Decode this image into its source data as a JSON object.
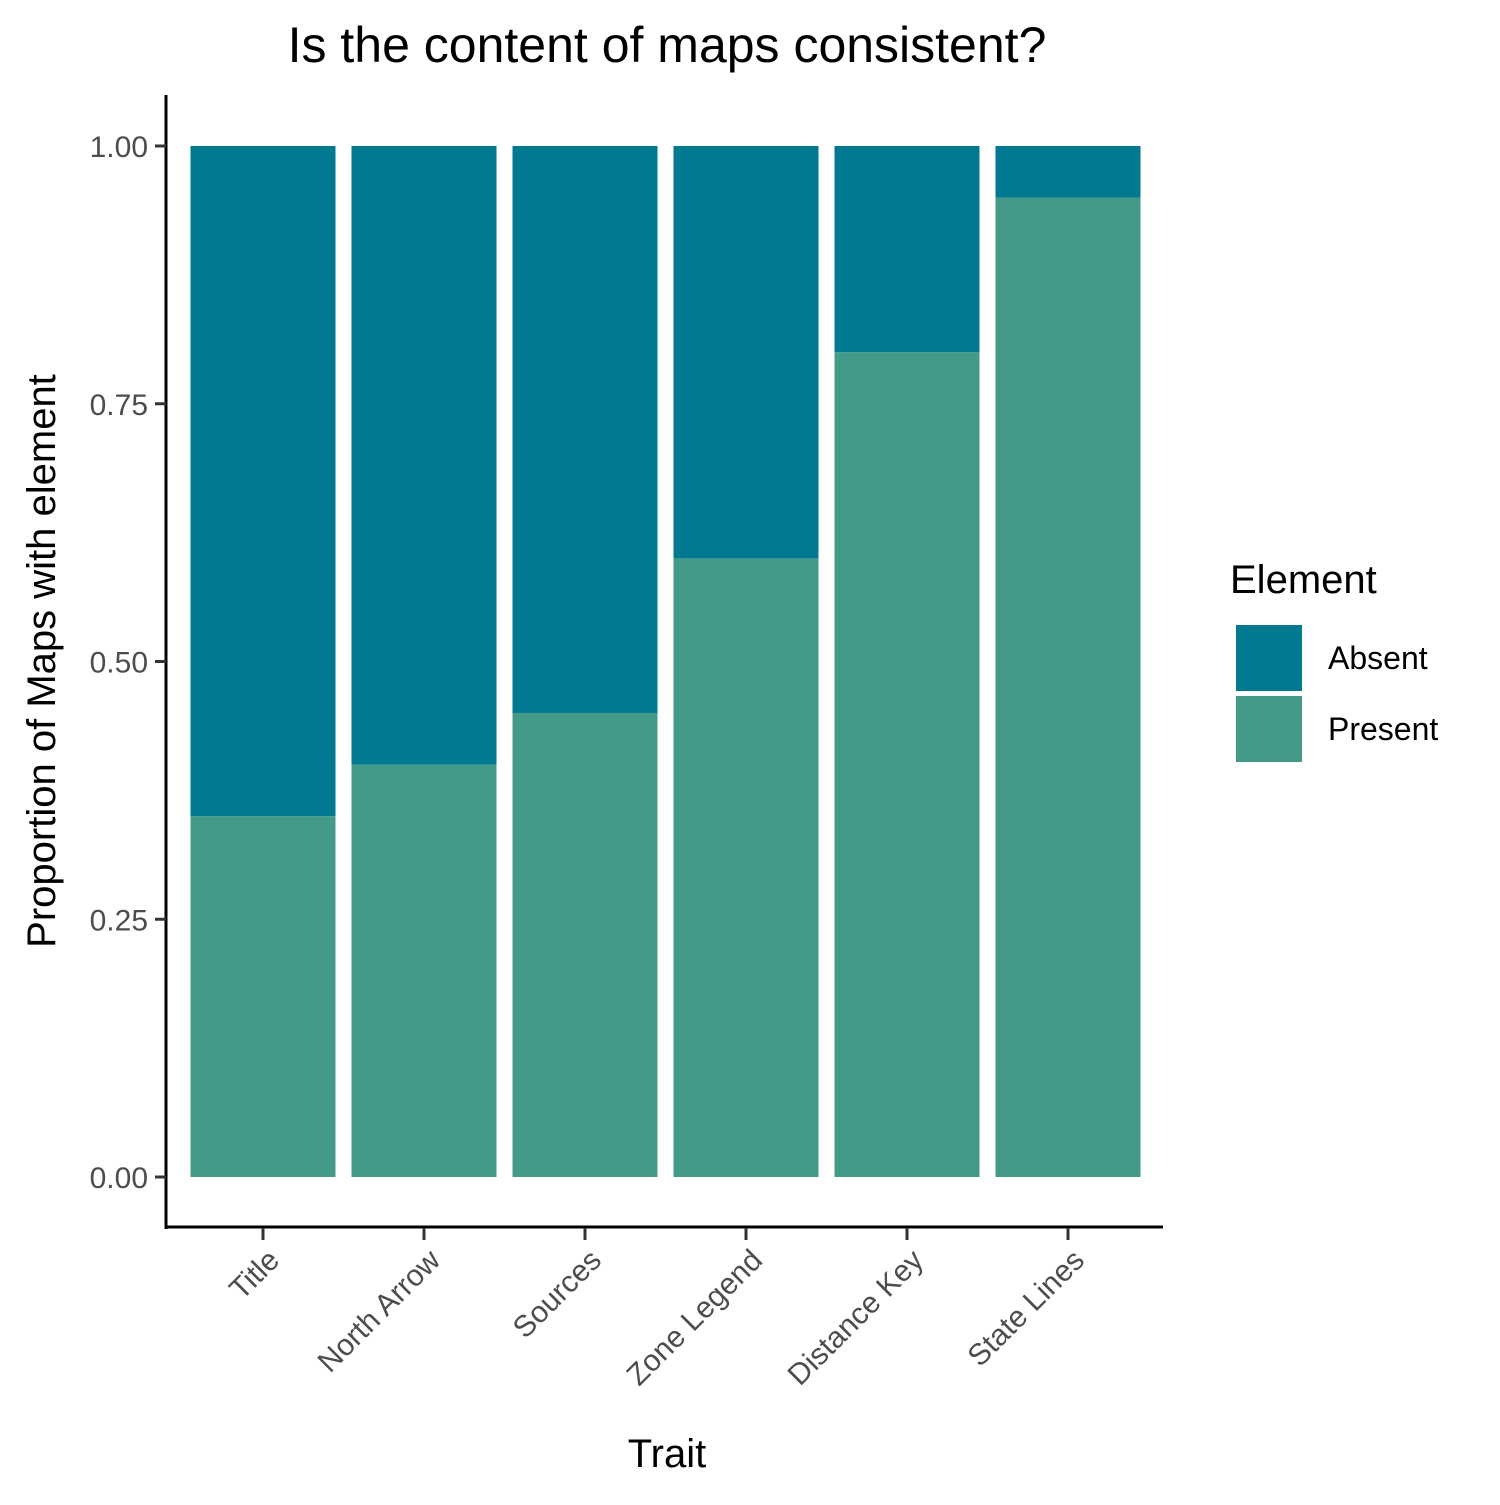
{
  "chart_data": {
    "type": "bar",
    "stacked": true,
    "title": "Is the content of maps consistent?",
    "xlabel": "Trait",
    "ylabel": "Proportion of Maps with element",
    "categories": [
      "Title",
      "North Arrow",
      "Sources",
      "Zone Legend",
      "Distance Key",
      "State Lines"
    ],
    "series": [
      {
        "name": "Present",
        "color": "#449a88",
        "values": [
          0.35,
          0.4,
          0.45,
          0.6,
          0.8,
          0.95
        ]
      },
      {
        "name": "Absent",
        "color": "#017a91",
        "values": [
          0.65,
          0.6,
          0.55,
          0.4,
          0.2,
          0.05
        ]
      }
    ],
    "ylim": [
      0,
      1
    ],
    "yticks": [
      "0.00",
      "0.25",
      "0.50",
      "0.75",
      "1.00"
    ],
    "ytick_values": [
      0,
      0.25,
      0.5,
      0.75,
      1.0
    ],
    "grid": false,
    "legend": {
      "title": "Element",
      "position": "right",
      "entries": [
        {
          "name": "Absent",
          "color": "#017a91"
        },
        {
          "name": "Present",
          "color": "#449a88"
        }
      ]
    }
  }
}
